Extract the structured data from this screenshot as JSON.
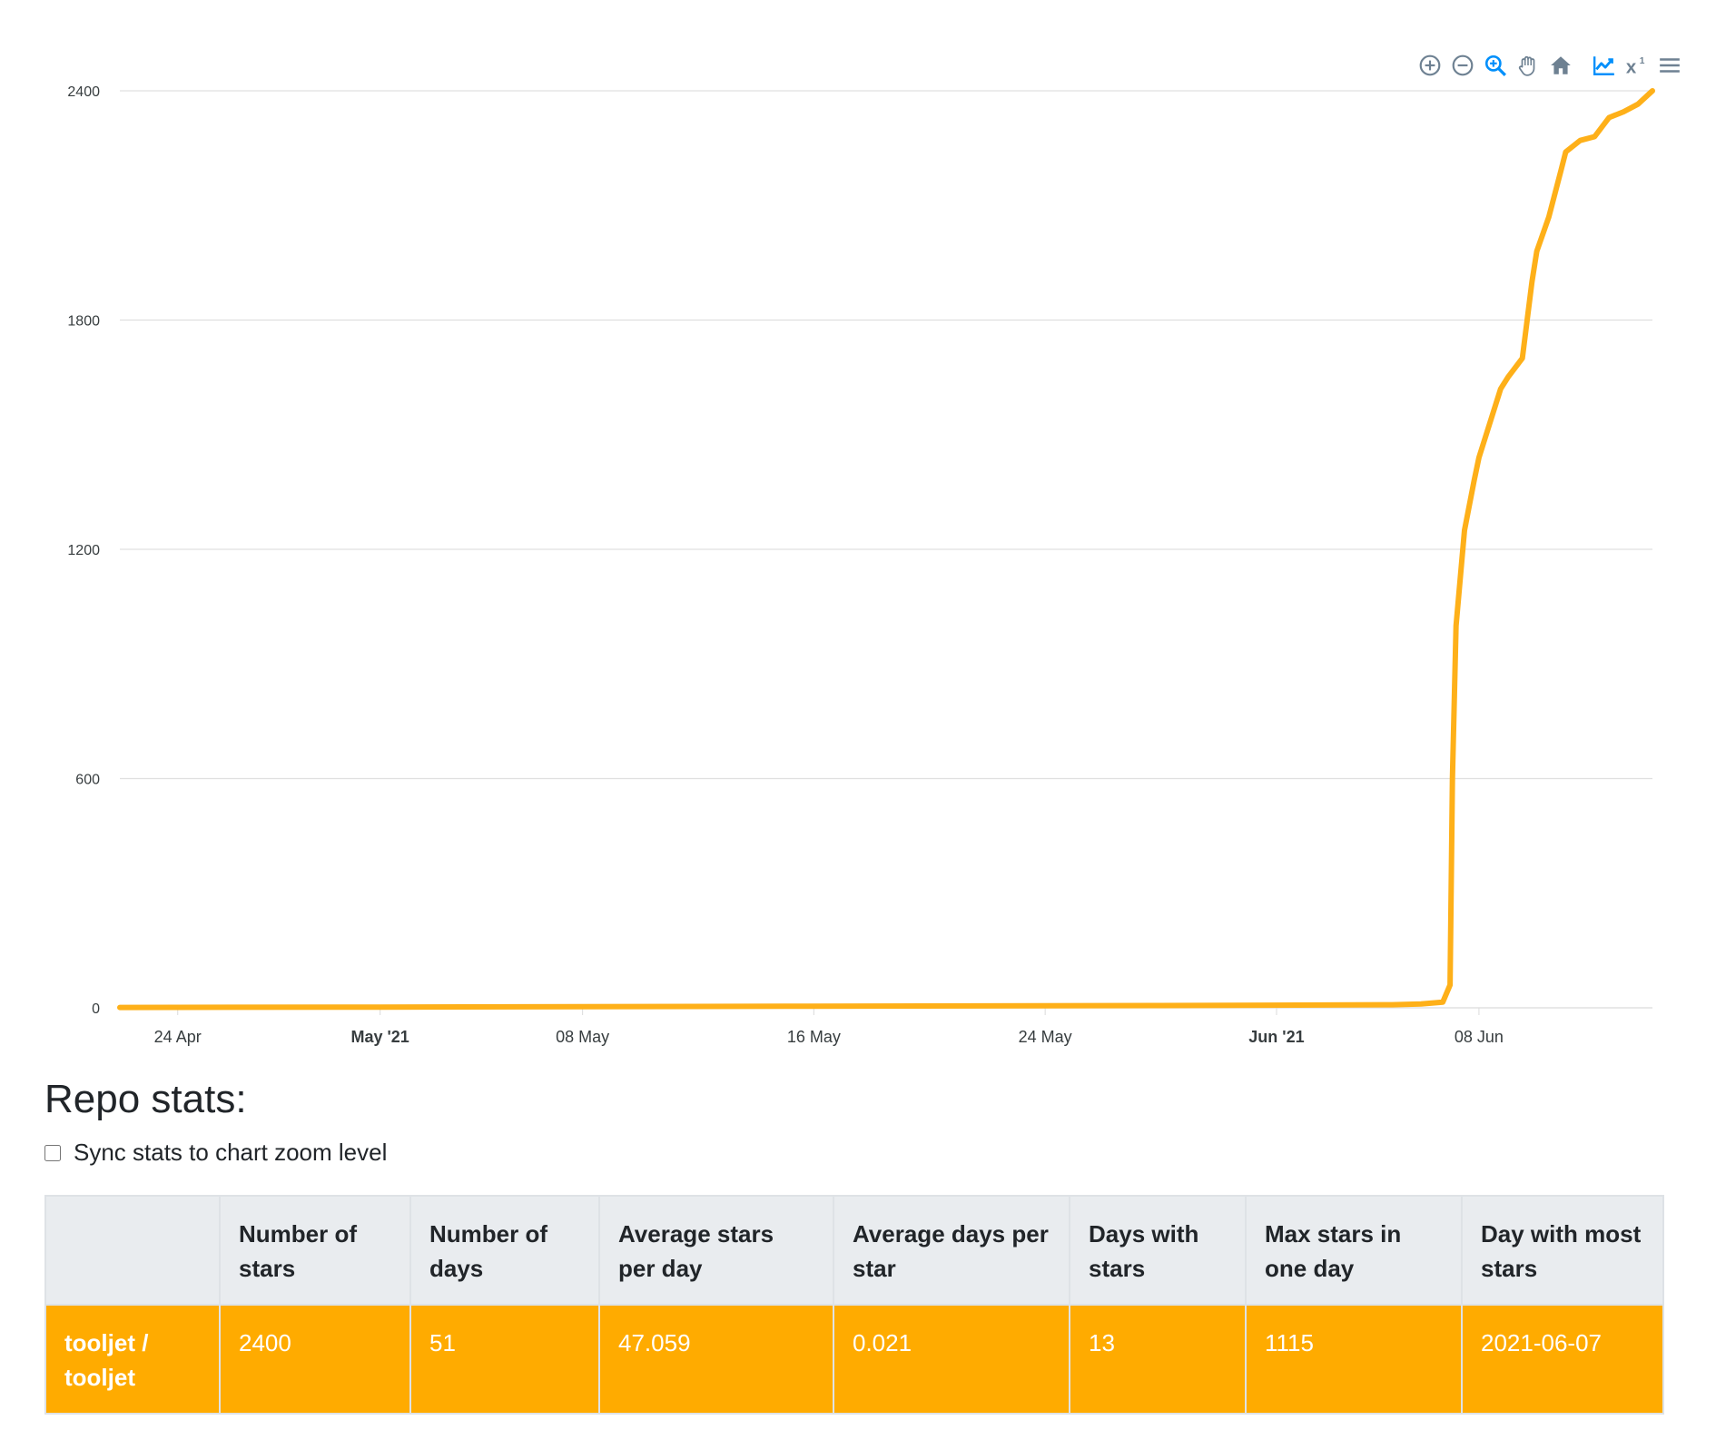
{
  "chart_data": {
    "type": "line",
    "title": "",
    "xlabel": "",
    "ylabel": "",
    "ylim": [
      0,
      2400
    ],
    "yticks": [
      0,
      600,
      1200,
      1800,
      2400
    ],
    "xlim": [
      "2021-04-22",
      "2021-06-14"
    ],
    "xticks": [
      {
        "date": "2021-04-24",
        "label": "24 Apr",
        "major": false
      },
      {
        "date": "2021-05-01",
        "label": "May '21",
        "major": true
      },
      {
        "date": "2021-05-08",
        "label": "08 May",
        "major": false
      },
      {
        "date": "2021-05-16",
        "label": "16 May",
        "major": false
      },
      {
        "date": "2021-05-24",
        "label": "24 May",
        "major": false
      },
      {
        "date": "2021-06-01",
        "label": "Jun '21",
        "major": true
      },
      {
        "date": "2021-06-08",
        "label": "08 Jun",
        "major": false
      }
    ],
    "grid": true,
    "legend": "none",
    "series": [
      {
        "color": "#FEB019",
        "points": [
          [
            "2021-04-22",
            1
          ],
          [
            "2021-05-01",
            2
          ],
          [
            "2021-05-15",
            4
          ],
          [
            "2021-05-28",
            6
          ],
          [
            "2021-06-05",
            8
          ],
          [
            "2021-06-06",
            10
          ],
          [
            "2021-06-06T18:00",
            15
          ],
          [
            "2021-06-07",
            60
          ],
          [
            "2021-06-07T02:00",
            600
          ],
          [
            "2021-06-07T05:00",
            1000
          ],
          [
            "2021-06-07T12:00",
            1250
          ],
          [
            "2021-06-07T20:00",
            1380
          ],
          [
            "2021-06-08",
            1440
          ],
          [
            "2021-06-08T10:00",
            1540
          ],
          [
            "2021-06-08T18:00",
            1620
          ],
          [
            "2021-06-09",
            1650
          ],
          [
            "2021-06-09T12:00",
            1700
          ],
          [
            "2021-06-09T20:00",
            1900
          ],
          [
            "2021-06-10",
            1980
          ],
          [
            "2021-06-10T10:00",
            2070
          ],
          [
            "2021-06-10T20:00",
            2190
          ],
          [
            "2021-06-11",
            2240
          ],
          [
            "2021-06-11T12:00",
            2270
          ],
          [
            "2021-06-12",
            2280
          ],
          [
            "2021-06-12T12:00",
            2330
          ],
          [
            "2021-06-13",
            2345
          ],
          [
            "2021-06-13T12:00",
            2365
          ],
          [
            "2021-06-14",
            2400
          ]
        ]
      }
    ]
  },
  "toolbar": {
    "icons": [
      "zoom-in-icon",
      "zoom-out-icon",
      "selection-zoom-icon",
      "pan-hand-icon",
      "home-reset-icon",
      "linear-scale-icon",
      "log-scale-icon",
      "menu-icon"
    ],
    "active_color": "#008FFB",
    "inactive_color": "#6E8192",
    "log_icon_text": "x",
    "log_icon_sup": "1"
  },
  "stats": {
    "title": "Repo stats:",
    "sync_label": "Sync stats to chart zoom level",
    "sync_checked": false,
    "headers": [
      "",
      "Number of stars",
      "Number of days",
      "Average stars per day",
      "Average days per star",
      "Days with stars",
      "Max stars in one day",
      "Day with most stars"
    ],
    "rows": [
      {
        "repo": "tooljet / tooljet",
        "values": [
          "2400",
          "51",
          "47.059",
          "0.021",
          "13",
          "1115",
          "2021-06-07"
        ],
        "color": "#FFAB00"
      }
    ]
  }
}
